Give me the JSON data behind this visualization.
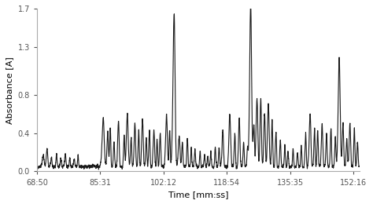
{
  "title": "",
  "xlabel": "Time [mm:ss]",
  "ylabel": "Absorbance [A]",
  "ylim": [
    0,
    1.7
  ],
  "yticks": [
    0.0,
    0.4,
    0.8,
    1.3,
    1.7
  ],
  "xtick_labels": [
    "68:50",
    "85:31",
    "102:12",
    "118:54",
    "135:35",
    "152:16"
  ],
  "xtick_positions": [
    0,
    1001,
    2002,
    3004,
    4005,
    5006
  ],
  "line_color": "#1a1a1a",
  "linewidth": 0.8,
  "background_color": "#ffffff",
  "figsize": [
    4.74,
    2.6
  ],
  "dpi": 100
}
